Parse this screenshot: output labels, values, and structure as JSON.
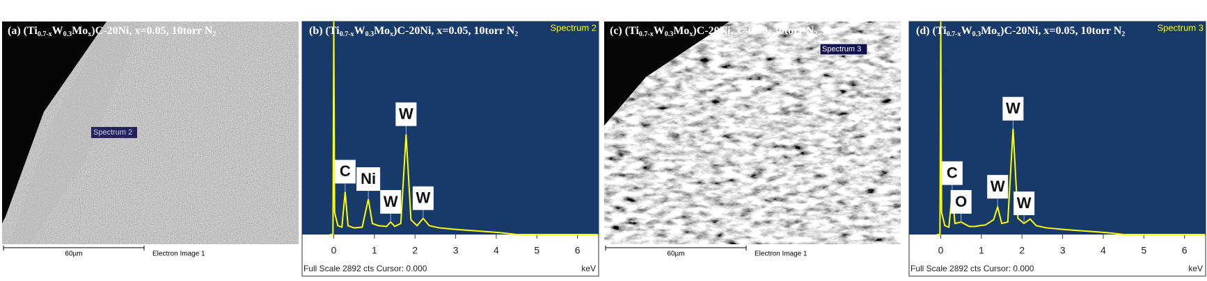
{
  "images": [
    {
      "title_parts": [
        "(a) (Ti",
        "0.7-x",
        "W",
        "0.3",
        "Mo",
        "x",
        ")C-20Ni, x=0.05, 10torr N",
        "2"
      ],
      "spectrum_label": "Spectrum 2",
      "scale_bar": "60µm",
      "caption": "Electron Image 1"
    },
    {
      "title_parts": [
        "(c) (Ti",
        "0.7-x",
        "W",
        "0.3",
        "Mo",
        "x",
        ")C-20Ni, x=0.00, 30torr N",
        "2"
      ],
      "spectrum_label": "Spectrum 3",
      "scale_bar": "60µm",
      "caption": "Electron Image 1"
    }
  ],
  "chart_data": [
    {
      "type": "line",
      "title_parts": [
        "(b) (Ti",
        "0.7-x",
        "W",
        "0.3",
        "Mo",
        "x",
        ")C-20Ni, x=0.05, 10torr N",
        "2"
      ],
      "spectrum_label": "Spectrum 2",
      "x": [
        -0.1,
        -0.02,
        0,
        0.02,
        0.1,
        0.2,
        0.28,
        0.35,
        0.5,
        0.7,
        0.85,
        0.95,
        1.1,
        1.3,
        1.4,
        1.5,
        1.65,
        1.78,
        1.9,
        2.05,
        2.2,
        2.35,
        2.6,
        3,
        3.5,
        4,
        4.2,
        4.5,
        5,
        6,
        6.5
      ],
      "series": [
        {
          "color": "#ffff00",
          "values": [
            0,
            0,
            2892,
            300,
            120,
            100,
            580,
            120,
            90,
            100,
            480,
            150,
            120,
            110,
            170,
            110,
            150,
            1360,
            200,
            120,
            220,
            120,
            90,
            70,
            50,
            30,
            20,
            0,
            0,
            0,
            0
          ]
        }
      ],
      "xlim": [
        -0.78,
        6.52
      ],
      "ylim": [
        0,
        2892
      ],
      "xticks": [
        0,
        1,
        2,
        3,
        4,
        5,
        6
      ],
      "x_label": "keV",
      "footer": "Full Scale 2892 cts Cursor: 0.000",
      "annotations": [
        {
          "text": "C",
          "x": 0.28
        },
        {
          "text": "Ni",
          "x": 0.85
        },
        {
          "text": "W",
          "x": 1.4
        },
        {
          "text": "W",
          "x": 1.78
        },
        {
          "text": "W",
          "x": 2.2
        }
      ]
    },
    {
      "type": "line",
      "title_parts": [
        "(d) (Ti",
        "0.7-x",
        "W",
        "0.3",
        "Mo",
        "x",
        ")C-20Ni, x=0.05, 10torr N",
        "2"
      ],
      "spectrum_label": "Spectrum 3",
      "x": [
        -0.1,
        -0.02,
        0,
        0.02,
        0.1,
        0.2,
        0.28,
        0.35,
        0.5,
        0.7,
        0.85,
        0.95,
        1.1,
        1.3,
        1.4,
        1.5,
        1.65,
        1.78,
        1.9,
        2.05,
        2.2,
        2.35,
        2.6,
        3,
        3.5,
        4,
        4.2,
        4.5,
        5,
        6,
        6.5
      ],
      "series": [
        {
          "color": "#ffff00",
          "values": [
            0,
            0,
            2892,
            300,
            120,
            100,
            560,
            150,
            170,
            110,
            110,
            120,
            130,
            200,
            375,
            150,
            170,
            1435,
            220,
            150,
            210,
            120,
            90,
            70,
            50,
            30,
            20,
            0,
            0,
            0,
            0
          ]
        }
      ],
      "xlim": [
        -0.78,
        6.52
      ],
      "ylim": [
        0,
        2892
      ],
      "xticks": [
        0,
        1,
        2,
        3,
        4,
        5,
        6
      ],
      "x_label": "keV",
      "footer": "Full Scale 2892 cts Cursor: 0.000",
      "annotations": [
        {
          "text": "C",
          "x": 0.28
        },
        {
          "text": "O",
          "x": 0.5
        },
        {
          "text": "W",
          "x": 1.4
        },
        {
          "text": "W",
          "x": 1.78
        },
        {
          "text": "W",
          "x": 2.05
        }
      ]
    }
  ]
}
